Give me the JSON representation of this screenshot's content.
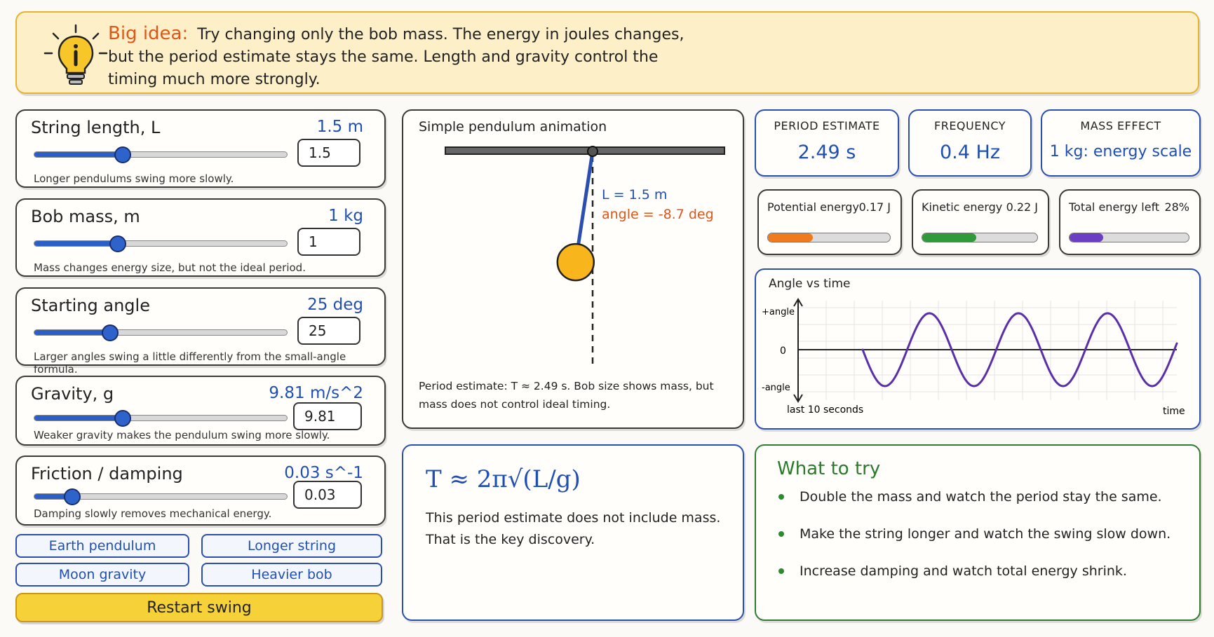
{
  "banner": {
    "lead": "Big idea:",
    "text": "Try changing only the bob mass. The energy in joules changes, but the period estimate stays the same. Length and gravity control the timing much more strongly.",
    "icon": "lightbulb-info-icon"
  },
  "controls": {
    "length": {
      "title": "String length, L",
      "value_label": "1.5 m",
      "input": "1.5",
      "hint": "Longer pendulums swing more slowly.",
      "fraction": 0.35
    },
    "mass": {
      "title": "Bob mass, m",
      "value_label": "1 kg",
      "input": "1",
      "hint": "Mass changes energy size, but not the ideal period.",
      "fraction": 0.33
    },
    "angle": {
      "title": "Starting angle",
      "value_label": "25 deg",
      "input": "25",
      "hint": "Larger angles swing a little differently from the small-angle formula.",
      "fraction": 0.3
    },
    "gravity": {
      "title": "Gravity, g",
      "value_label": "9.81 m/s^2",
      "input": "9.81",
      "hint": "Weaker gravity makes the pendulum swing more slowly.",
      "fraction": 0.35
    },
    "damping": {
      "title": "Friction / damping",
      "value_label": "0.03 s^-1",
      "input": "0.03",
      "hint": "Damping slowly removes mechanical energy.",
      "fraction": 0.15
    }
  },
  "presets": {
    "earth": "Earth pendulum",
    "longer": "Longer string",
    "moon": "Moon gravity",
    "heavier": "Heavier bob",
    "restart": "Restart swing"
  },
  "animation": {
    "title": "Simple pendulum animation",
    "length_label": "L = 1.5 m",
    "angle_label": "angle = -8.7 deg",
    "angle_deg": -8.7,
    "caption": "Period estimate: T ≈ 2.49 s.  Bob size shows mass, but mass does not control ideal timing."
  },
  "stats": {
    "period": {
      "label": "PERIOD ESTIMATE",
      "value": "2.49 s"
    },
    "frequency": {
      "label": "FREQUENCY",
      "value": "0.4 Hz"
    },
    "mass": {
      "label": "MASS EFFECT",
      "value": "1 kg: energy scale"
    }
  },
  "energy": {
    "potential": {
      "label": "Potential energy",
      "value": "0.17 J",
      "fraction": 0.37,
      "color": "#f07a1e"
    },
    "kinetic": {
      "label": "Kinetic energy",
      "value": "0.22 J",
      "fraction": 0.47,
      "color": "#2f9a3a"
    },
    "total": {
      "label": "Total energy left",
      "value": "28%",
      "fraction": 0.28,
      "color": "#6a3fc4"
    }
  },
  "graph": {
    "title": "Angle vs time",
    "y_top": "+angle",
    "y_zero": "0",
    "y_bottom": "-angle",
    "x_left": "last 10 seconds",
    "x_right": "time",
    "line_color": "#5a2fa8"
  },
  "formula": {
    "equation": "T ≈ 2π√(L/g)",
    "text": "This period estimate does not include mass. That is the key discovery."
  },
  "try": {
    "title": "What to try",
    "items": [
      "Double the mass and watch the period stay the same.",
      "Make the string longer and watch the swing slow down.",
      "Increase damping and watch total energy shrink."
    ]
  }
}
